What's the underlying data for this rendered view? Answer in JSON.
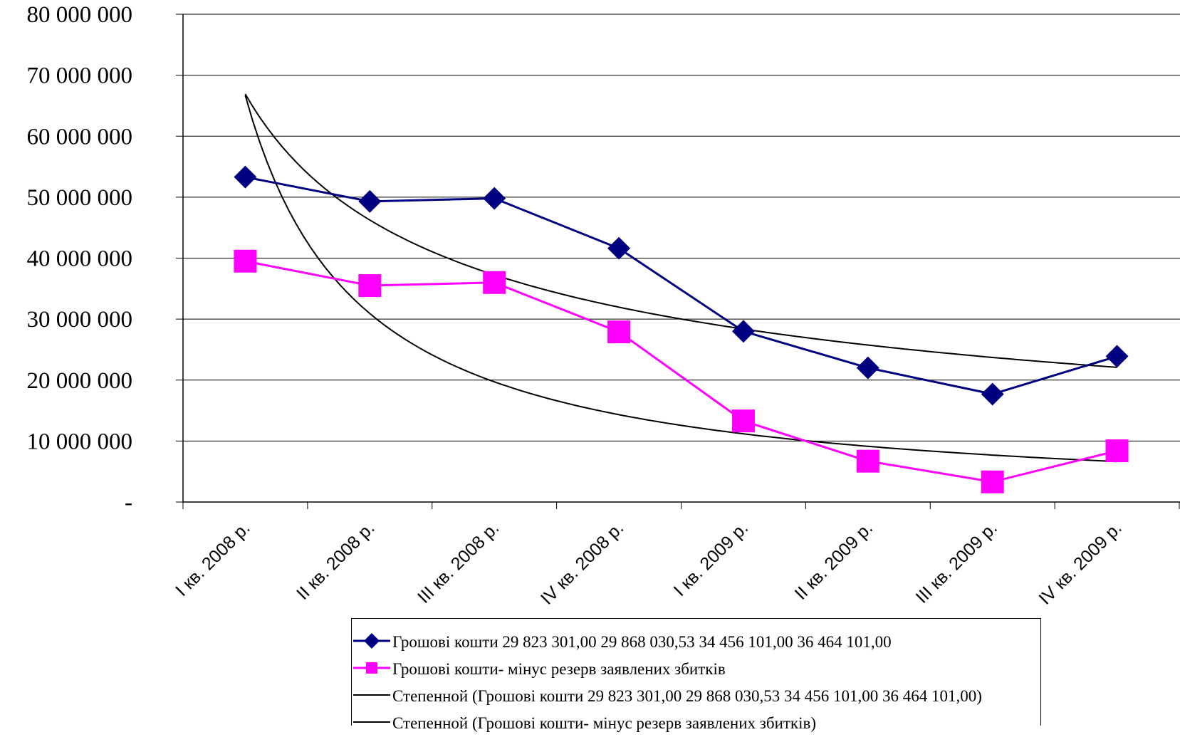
{
  "chart_data": {
    "type": "line",
    "categories": [
      "I кв. 2008 р.",
      "II кв. 2008 р.",
      "III кв. 2008 р.",
      "IV кв. 2008 р.",
      "I кв. 2009 р.",
      "II кв. 2009 р.",
      "III кв. 2009 р.",
      "IV кв. 2009 р."
    ],
    "ylim": [
      0,
      80000000
    ],
    "yticks": [
      {
        "value": 80000000,
        "label": "80 000 000"
      },
      {
        "value": 70000000,
        "label": "70 000 000"
      },
      {
        "value": 60000000,
        "label": "60 000 000"
      },
      {
        "value": 50000000,
        "label": "50 000 000"
      },
      {
        "value": 40000000,
        "label": "40 000 000"
      },
      {
        "value": 30000000,
        "label": "30 000 000"
      },
      {
        "value": 20000000,
        "label": "20 000 000"
      },
      {
        "value": 10000000,
        "label": "10 000 000"
      },
      {
        "value": 0,
        "label": "-"
      }
    ],
    "grid": true,
    "legend_position": "bottom",
    "series": [
      {
        "name": "Грошові кошти 29 823 301,00 29 868 030,53 34 456 101,00 36 464 101,00",
        "color": "#000080",
        "marker": "diamond",
        "values": [
          53300000,
          49300000,
          49800000,
          41600000,
          28000000,
          22000000,
          17700000,
          23900000
        ]
      },
      {
        "name": "Грошові кошти- мінус резерв заявлених збитків",
        "color": "#FF00FF",
        "marker": "square",
        "values": [
          39500000,
          35500000,
          36000000,
          27900000,
          13300000,
          6700000,
          3300000,
          8400000
        ]
      }
    ],
    "trendlines": [
      {
        "name": "Степенной (Грошові кошти 29 823 301,00 29 868 030,53 34 456 101,00 36 464 101,00)",
        "color": "#000000",
        "type": "power",
        "values": [
          66800000,
          46500000,
          37200000,
          32000000,
          28200000,
          25700000,
          23700000,
          22200000
        ]
      },
      {
        "name": "Степенной (Грошові кошти- мінус резерв заявлених збитків)",
        "color": "#000000",
        "type": "power",
        "values": [
          66800000,
          30800000,
          19500000,
          14500000,
          11300000,
          9100000,
          7700000,
          6600000
        ]
      }
    ]
  }
}
